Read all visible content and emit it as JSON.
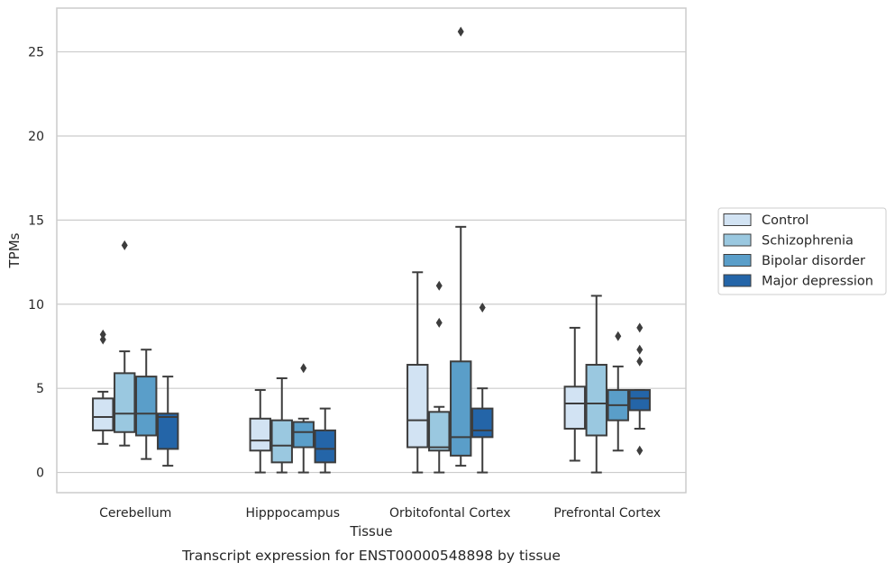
{
  "chart_data": {
    "type": "box",
    "xlabel": "Tissue",
    "ylabel": "TPMs",
    "caption": "Transcript expression for ENST00000548898 by tissue",
    "categories": [
      "Cerebellum",
      "Hipppocampus",
      "Orbitofontal Cortex",
      "Prefrontal Cortex"
    ],
    "ylim": [
      -1.2,
      27.6
    ],
    "yticks": [
      0,
      5,
      10,
      15,
      20,
      25
    ],
    "grid": "horizontal",
    "legend_position": "right",
    "series": [
      {
        "name": "Control",
        "color": "#d2e3f3",
        "boxes": [
          {
            "whisker_low": 1.7,
            "q1": 2.5,
            "median": 3.3,
            "q3": 4.4,
            "whisker_high": 4.8,
            "outliers": [
              7.9,
              8.2
            ]
          },
          {
            "whisker_low": 0.0,
            "q1": 1.3,
            "median": 1.9,
            "q3": 3.2,
            "whisker_high": 4.9,
            "outliers": []
          },
          {
            "whisker_low": 0.0,
            "q1": 1.5,
            "median": 3.1,
            "q3": 6.4,
            "whisker_high": 11.9,
            "outliers": []
          },
          {
            "whisker_low": 0.7,
            "q1": 2.6,
            "median": 4.1,
            "q3": 5.1,
            "whisker_high": 8.6,
            "outliers": []
          }
        ]
      },
      {
        "name": "Schizophrenia",
        "color": "#9ac8e0",
        "boxes": [
          {
            "whisker_low": 1.6,
            "q1": 2.4,
            "median": 3.5,
            "q3": 5.9,
            "whisker_high": 7.2,
            "outliers": [
              13.5
            ]
          },
          {
            "whisker_low": 0.0,
            "q1": 0.6,
            "median": 1.6,
            "q3": 3.1,
            "whisker_high": 5.6,
            "outliers": []
          },
          {
            "whisker_low": 0.0,
            "q1": 1.3,
            "median": 1.5,
            "q3": 3.6,
            "whisker_high": 3.9,
            "outliers": [
              8.9,
              11.1
            ]
          },
          {
            "whisker_low": 0.0,
            "q1": 2.2,
            "median": 4.1,
            "q3": 6.4,
            "whisker_high": 10.5,
            "outliers": []
          }
        ]
      },
      {
        "name": "Bipolar disorder",
        "color": "#5a9ec9",
        "boxes": [
          {
            "whisker_low": 0.8,
            "q1": 2.2,
            "median": 3.5,
            "q3": 5.7,
            "whisker_high": 7.3,
            "outliers": []
          },
          {
            "whisker_low": 0.0,
            "q1": 1.5,
            "median": 2.4,
            "q3": 3.0,
            "whisker_high": 3.2,
            "outliers": [
              6.2
            ]
          },
          {
            "whisker_low": 0.4,
            "q1": 1.0,
            "median": 2.1,
            "q3": 6.6,
            "whisker_high": 14.6,
            "outliers": [
              26.2
            ]
          },
          {
            "whisker_low": 1.3,
            "q1": 3.1,
            "median": 4.0,
            "q3": 4.9,
            "whisker_high": 6.3,
            "outliers": [
              8.1
            ]
          }
        ]
      },
      {
        "name": "Major depression",
        "color": "#2465a8",
        "boxes": [
          {
            "whisker_low": 0.4,
            "q1": 1.4,
            "median": 3.3,
            "q3": 3.5,
            "whisker_high": 5.7,
            "outliers": []
          },
          {
            "whisker_low": 0.0,
            "q1": 0.6,
            "median": 1.4,
            "q3": 2.5,
            "whisker_high": 3.8,
            "outliers": []
          },
          {
            "whisker_low": 0.0,
            "q1": 2.1,
            "median": 2.5,
            "q3": 3.8,
            "whisker_high": 5.0,
            "outliers": [
              9.8
            ]
          },
          {
            "whisker_low": 2.6,
            "q1": 3.7,
            "median": 4.4,
            "q3": 4.9,
            "whisker_high": 4.9,
            "outliers": [
              1.3,
              6.6,
              7.3,
              8.6
            ]
          }
        ]
      }
    ]
  }
}
